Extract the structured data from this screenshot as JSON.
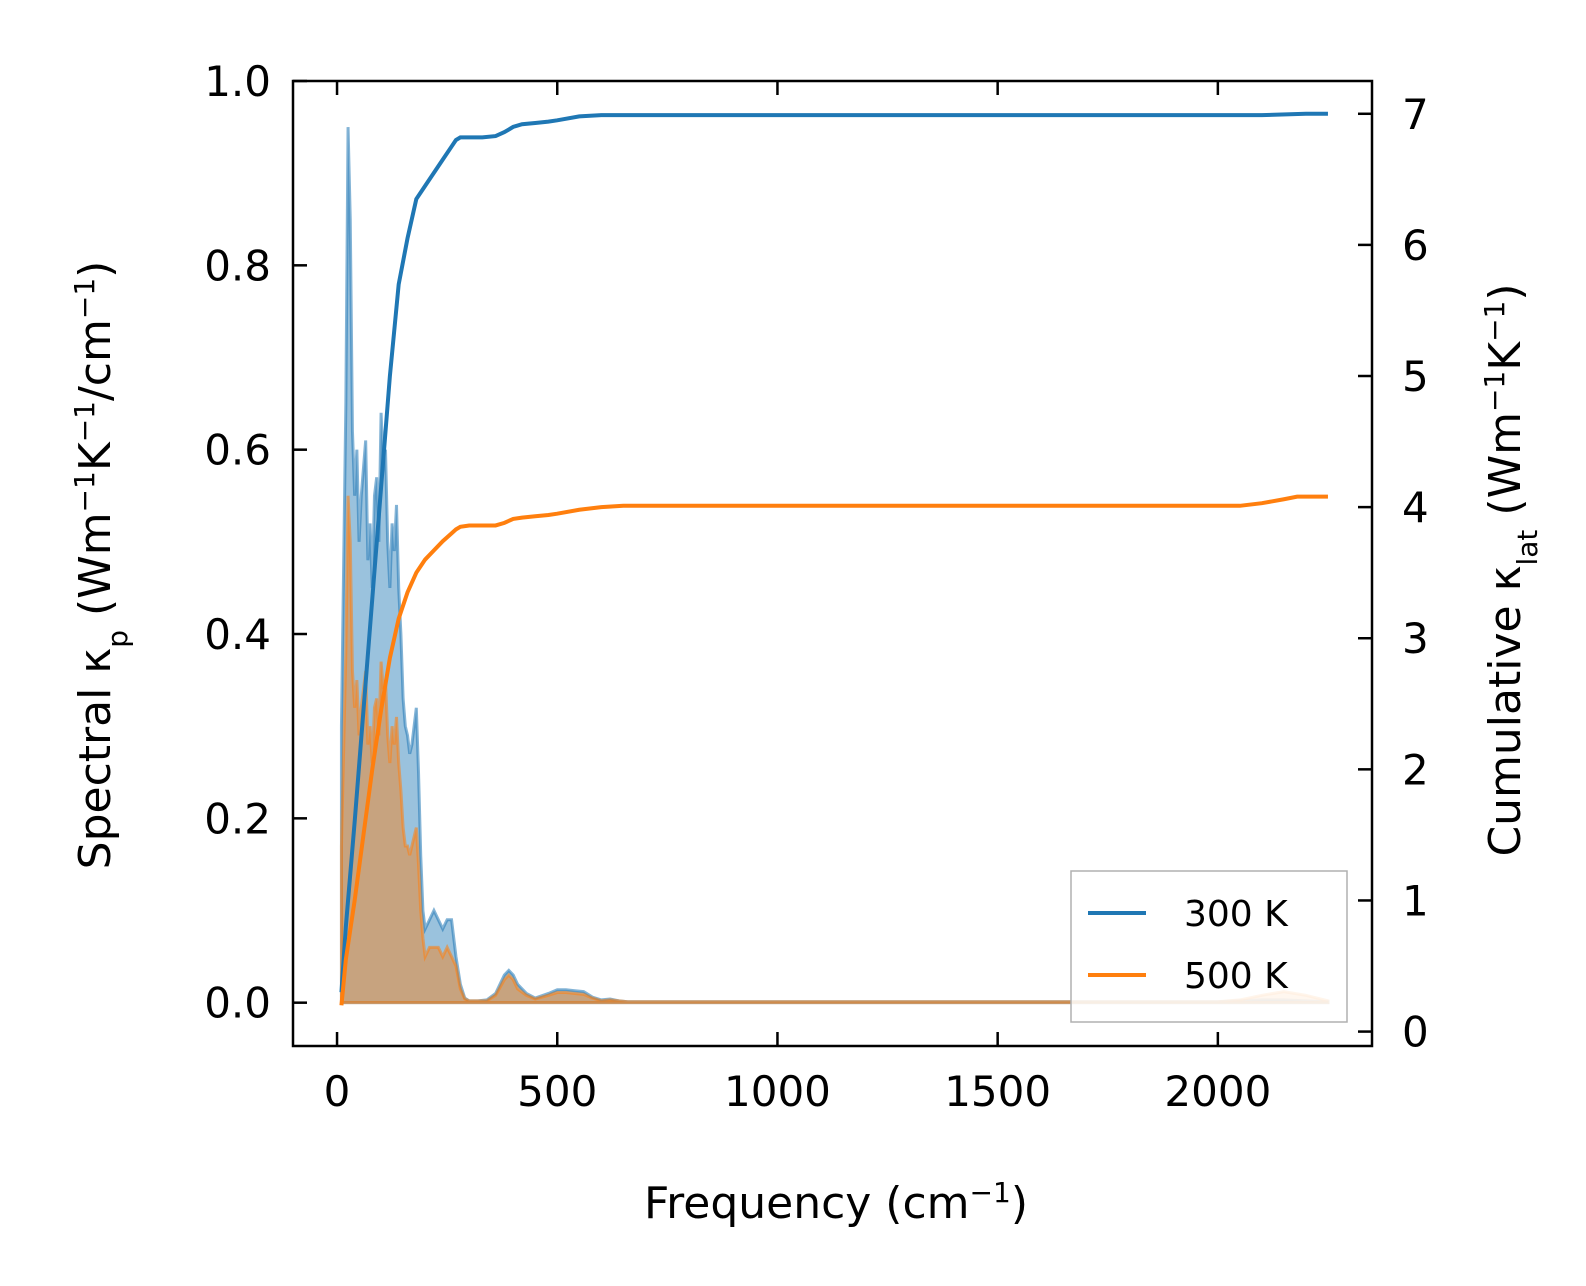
{
  "chart_data": {
    "type": "line",
    "xlabel": "Frequency (cm",
    "xlabel_sup": "−1",
    "xlabel_end": ")",
    "xlim": [
      -100,
      2350
    ],
    "x_ticks": [
      0,
      500,
      1000,
      1500,
      2000
    ],
    "x_tick_labels": [
      "0",
      "500",
      "1000",
      "1500",
      "2000"
    ],
    "y_left": {
      "label_parts": [
        {
          "t": "Spectral κ"
        },
        {
          "t": "p",
          "sub": true
        },
        {
          "t": " (Wm"
        },
        {
          "t": "−1",
          "sup": true
        },
        {
          "t": "K"
        },
        {
          "t": "−1",
          "sup": true
        },
        {
          "t": "/cm"
        },
        {
          "t": "−1",
          "sup": true
        },
        {
          "t": ")"
        }
      ],
      "lim": [
        -0.047,
        1.0
      ],
      "ticks": [
        0.0,
        0.2,
        0.4,
        0.6,
        0.8,
        1.0
      ],
      "tick_labels": [
        "0.0",
        "0.2",
        "0.4",
        "0.6",
        "0.8",
        "1.0"
      ]
    },
    "y_right": {
      "label_parts": [
        {
          "t": "Cumulative κ"
        },
        {
          "t": "lat",
          "sub": true
        },
        {
          "t": " (Wm"
        },
        {
          "t": "−1",
          "sup": true
        },
        {
          "t": "K"
        },
        {
          "t": "−1",
          "sup": true
        },
        {
          "t": ")"
        }
      ],
      "lim": [
        -0.11,
        7.25
      ],
      "ticks": [
        0,
        1,
        2,
        3,
        4,
        5,
        6,
        7
      ],
      "tick_labels": [
        "0",
        "1",
        "2",
        "3",
        "4",
        "5",
        "6",
        "7"
      ]
    },
    "legend": {
      "placement": "lower-right",
      "entries": [
        {
          "label": "300 K",
          "color": "#1f77b4"
        },
        {
          "label": "500 K",
          "color": "#ff7f0e"
        }
      ]
    },
    "series": [
      {
        "name": "300 K",
        "color": "#1f77b4",
        "spectral": {
          "x": [
            10,
            20,
            25,
            30,
            35,
            40,
            45,
            50,
            55,
            60,
            65,
            70,
            75,
            80,
            85,
            90,
            95,
            100,
            105,
            110,
            115,
            120,
            125,
            130,
            135,
            140,
            145,
            150,
            155,
            160,
            165,
            170,
            175,
            180,
            185,
            190,
            195,
            200,
            210,
            220,
            230,
            240,
            250,
            260,
            270,
            280,
            290,
            300,
            320,
            340,
            360,
            380,
            390,
            400,
            410,
            430,
            450,
            480,
            500,
            520,
            540,
            560,
            580,
            600,
            620,
            640,
            660,
            700,
            800,
            1000,
            1500,
            2000,
            2050,
            2100,
            2150,
            2200,
            2250
          ],
          "y": [
            0.3,
            0.65,
            0.95,
            0.85,
            0.62,
            0.55,
            0.6,
            0.5,
            0.55,
            0.58,
            0.61,
            0.48,
            0.52,
            0.45,
            0.55,
            0.57,
            0.5,
            0.64,
            0.58,
            0.6,
            0.5,
            0.45,
            0.52,
            0.49,
            0.54,
            0.45,
            0.4,
            0.33,
            0.3,
            0.29,
            0.27,
            0.28,
            0.3,
            0.32,
            0.25,
            0.16,
            0.1,
            0.08,
            0.09,
            0.1,
            0.09,
            0.08,
            0.09,
            0.09,
            0.05,
            0.02,
            0.005,
            0.002,
            0.002,
            0.003,
            0.01,
            0.03,
            0.035,
            0.03,
            0.02,
            0.01,
            0.005,
            0.01,
            0.014,
            0.014,
            0.013,
            0.012,
            0.006,
            0.003,
            0.004,
            0.002,
            0.001,
            0.001,
            0.001,
            0.001,
            0.001,
            0.001,
            0.002,
            0.003,
            0.003,
            0.002,
            0.001
          ]
        },
        "cumulative": {
          "x": [
            10,
            20,
            40,
            60,
            80,
            100,
            120,
            140,
            160,
            180,
            200,
            220,
            240,
            260,
            270,
            280,
            300,
            330,
            360,
            380,
            400,
            420,
            450,
            480,
            500,
            550,
            600,
            650,
            700,
            1000,
            1500,
            2000,
            2100,
            2200,
            2250
          ],
          "y": [
            0.3,
            0.8,
            1.6,
            2.45,
            3.3,
            4.15,
            5.0,
            5.7,
            6.05,
            6.35,
            6.45,
            6.55,
            6.65,
            6.75,
            6.8,
            6.82,
            6.82,
            6.82,
            6.83,
            6.86,
            6.9,
            6.92,
            6.93,
            6.94,
            6.95,
            6.98,
            6.99,
            6.99,
            6.99,
            6.99,
            6.99,
            6.99,
            6.99,
            7.0,
            7.0
          ]
        }
      },
      {
        "name": "500 K",
        "color": "#ff7f0e",
        "spectral": {
          "x": [
            10,
            20,
            25,
            30,
            35,
            40,
            45,
            50,
            55,
            60,
            65,
            70,
            75,
            80,
            85,
            90,
            95,
            100,
            105,
            110,
            115,
            120,
            125,
            130,
            135,
            140,
            145,
            150,
            155,
            160,
            165,
            170,
            175,
            180,
            185,
            190,
            195,
            200,
            210,
            220,
            230,
            240,
            250,
            260,
            270,
            280,
            290,
            300,
            320,
            340,
            360,
            380,
            390,
            400,
            410,
            430,
            450,
            480,
            500,
            520,
            540,
            560,
            580,
            600,
            620,
            640,
            660,
            700,
            800,
            1000,
            1500,
            2000,
            2050,
            2100,
            2150,
            2200,
            2250
          ],
          "y": [
            0.17,
            0.38,
            0.55,
            0.5,
            0.36,
            0.32,
            0.35,
            0.29,
            0.32,
            0.34,
            0.36,
            0.28,
            0.3,
            0.26,
            0.32,
            0.33,
            0.29,
            0.37,
            0.34,
            0.35,
            0.29,
            0.26,
            0.3,
            0.28,
            0.31,
            0.26,
            0.23,
            0.19,
            0.17,
            0.17,
            0.16,
            0.17,
            0.18,
            0.19,
            0.15,
            0.1,
            0.07,
            0.05,
            0.06,
            0.06,
            0.06,
            0.05,
            0.06,
            0.05,
            0.04,
            0.015,
            0.004,
            0.002,
            0.002,
            0.002,
            0.008,
            0.025,
            0.03,
            0.025,
            0.015,
            0.008,
            0.004,
            0.008,
            0.011,
            0.011,
            0.01,
            0.009,
            0.005,
            0.002,
            0.003,
            0.002,
            0.001,
            0.001,
            0.001,
            0.001,
            0.001,
            0.001,
            0.003,
            0.008,
            0.012,
            0.008,
            0.002
          ]
        },
        "cumulative": {
          "x": [
            10,
            20,
            40,
            60,
            80,
            100,
            120,
            140,
            160,
            180,
            200,
            220,
            240,
            260,
            270,
            280,
            300,
            330,
            360,
            380,
            400,
            420,
            450,
            480,
            500,
            550,
            600,
            650,
            700,
            1000,
            1500,
            2000,
            2050,
            2100,
            2150,
            2180,
            2250
          ],
          "y": [
            0.2,
            0.55,
            1.0,
            1.5,
            2.0,
            2.45,
            2.85,
            3.15,
            3.35,
            3.5,
            3.6,
            3.67,
            3.74,
            3.8,
            3.83,
            3.85,
            3.86,
            3.86,
            3.86,
            3.88,
            3.91,
            3.92,
            3.93,
            3.94,
            3.95,
            3.98,
            4.0,
            4.01,
            4.01,
            4.01,
            4.01,
            4.01,
            4.01,
            4.03,
            4.06,
            4.08,
            4.08
          ]
        }
      }
    ]
  }
}
